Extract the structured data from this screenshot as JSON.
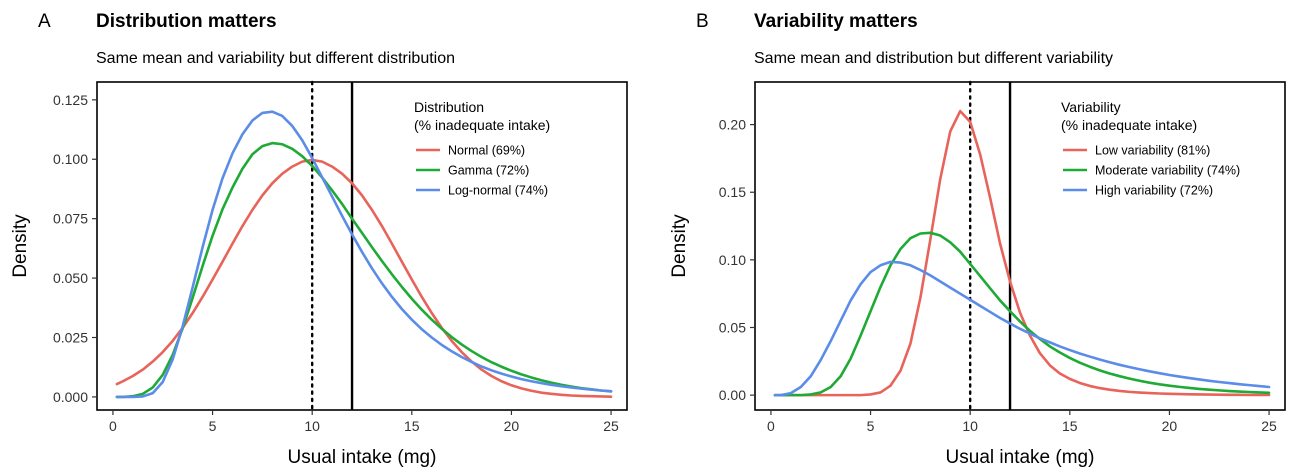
{
  "chart_data": [
    {
      "type": "line",
      "panel_label": "A",
      "title": "Distribution matters",
      "subtitle": "Same mean and variability but different distribution",
      "xlabel": "Usual intake (mg)",
      "ylabel": "Density",
      "xlim": [
        -0.8,
        25.8
      ],
      "ylim": [
        -0.0055,
        0.1325
      ],
      "xticks": [
        0,
        5,
        10,
        15,
        20,
        25
      ],
      "xtick_labels": [
        "0",
        "5",
        "10",
        "15",
        "20",
        "25"
      ],
      "yticks": [
        0,
        0.025,
        0.05,
        0.075,
        0.1,
        0.125
      ],
      "ytick_labels": [
        "0.000",
        "0.025",
        "0.050",
        "0.075",
        "0.100",
        "0.125"
      ],
      "grid": false,
      "legend": {
        "title_lines": [
          "Distribution",
          "(% inadequate intake)"
        ],
        "placement": "top-right inside plot"
      },
      "reference_lines": [
        {
          "x": 10,
          "style": "dotted",
          "color": "#000000"
        },
        {
          "x": 12,
          "style": "solid",
          "color": "#000000"
        }
      ],
      "series": [
        {
          "name": "Normal (69%)",
          "color": "#E8635A",
          "x": [
            0.2,
            0.5,
            1,
            1.5,
            2,
            2.5,
            3,
            3.5,
            4,
            4.5,
            5,
            5.5,
            6,
            6.5,
            7,
            7.5,
            8,
            8.5,
            9,
            9.5,
            10,
            10.5,
            11,
            11.5,
            12,
            12.5,
            13,
            13.5,
            14,
            14.5,
            15,
            15.5,
            16,
            16.5,
            17,
            17.5,
            18,
            18.5,
            19,
            19.5,
            20,
            20.5,
            21,
            21.5,
            22,
            22.5,
            23,
            23.5,
            24,
            24.5,
            25
          ],
          "y": [
            0.0054,
            0.0066,
            0.0088,
            0.0115,
            0.0149,
            0.0189,
            0.0236,
            0.0291,
            0.0353,
            0.0421,
            0.0494,
            0.0569,
            0.0645,
            0.0719,
            0.0787,
            0.0848,
            0.0899,
            0.0939,
            0.0969,
            0.099,
            0.0997,
            0.099,
            0.0969,
            0.0939,
            0.0899,
            0.0848,
            0.0787,
            0.0719,
            0.0645,
            0.0569,
            0.0494,
            0.0421,
            0.0353,
            0.0291,
            0.0236,
            0.0189,
            0.0149,
            0.0115,
            0.0088,
            0.0066,
            0.0049,
            0.0036,
            0.0026,
            0.0018,
            0.0013,
            0.0009,
            0.0006,
            0.0004,
            0.0003,
            0.0002,
            0.0001
          ]
        },
        {
          "name": "Gamma (72%)",
          "color": "#1FAA36",
          "x": [
            0.2,
            0.5,
            1,
            1.5,
            2,
            2.5,
            3,
            3.5,
            4,
            4.5,
            5,
            5.5,
            6,
            6.5,
            7,
            7.5,
            8,
            8.5,
            9,
            9.5,
            10,
            10.5,
            11,
            11.5,
            12,
            12.5,
            13,
            13.5,
            14,
            14.5,
            15,
            15.5,
            16,
            16.5,
            17,
            17.5,
            18,
            18.5,
            19,
            19.5,
            20,
            20.5,
            21,
            21.5,
            22,
            22.5,
            23,
            23.5,
            24,
            24.5,
            25
          ],
          "y": [
            0.0,
            0.0,
            0.0003,
            0.0013,
            0.004,
            0.0093,
            0.0177,
            0.0289,
            0.0417,
            0.0551,
            0.0678,
            0.079,
            0.0881,
            0.096,
            0.1021,
            0.1055,
            0.1068,
            0.1063,
            0.1044,
            0.1013,
            0.0972,
            0.0923,
            0.0869,
            0.0812,
            0.075,
            0.069,
            0.063,
            0.0572,
            0.0516,
            0.0463,
            0.0413,
            0.0367,
            0.0325,
            0.0287,
            0.0252,
            0.0221,
            0.0193,
            0.0168,
            0.0146,
            0.0127,
            0.011,
            0.0095,
            0.0082,
            0.007,
            0.006,
            0.0051,
            0.0044,
            0.0037,
            0.0032,
            0.0027,
            0.0023
          ]
        },
        {
          "name": "Log-normal (74%)",
          "color": "#5B8CE8",
          "x": [
            0.2,
            0.5,
            1,
            1.5,
            2,
            2.5,
            3,
            3.5,
            4,
            4.5,
            5,
            5.5,
            6,
            6.5,
            7,
            7.5,
            8,
            8.5,
            9,
            9.5,
            10,
            10.5,
            11,
            11.5,
            12,
            12.5,
            13,
            13.5,
            14,
            14.5,
            15,
            15.5,
            16,
            16.5,
            17,
            17.5,
            18,
            18.5,
            19,
            19.5,
            20,
            20.5,
            21,
            21.5,
            22,
            22.5,
            23,
            23.5,
            24,
            24.5,
            25
          ],
          "y": [
            0.0,
            0.0,
            0.0,
            0.0002,
            0.0016,
            0.0063,
            0.0158,
            0.0297,
            0.0461,
            0.063,
            0.0787,
            0.092,
            0.1025,
            0.1105,
            0.1163,
            0.1195,
            0.12,
            0.1182,
            0.114,
            0.108,
            0.1005,
            0.0924,
            0.0843,
            0.0762,
            0.0684,
            0.061,
            0.0541,
            0.0478,
            0.0421,
            0.037,
            0.0325,
            0.0285,
            0.025,
            0.0219,
            0.0192,
            0.0168,
            0.0147,
            0.0128,
            0.0112,
            0.0098,
            0.0086,
            0.0075,
            0.0066,
            0.0058,
            0.0051,
            0.0045,
            0.004,
            0.0035,
            0.0031,
            0.0027,
            0.0024
          ]
        }
      ]
    },
    {
      "type": "line",
      "panel_label": "B",
      "title": "Variability matters",
      "subtitle": "Same mean and distribution but different variability",
      "xlabel": "Usual intake (mg)",
      "ylabel": "Density",
      "xlim": [
        -0.8,
        25.8
      ],
      "ylim": [
        -0.011,
        0.2315
      ],
      "xticks": [
        0,
        5,
        10,
        15,
        20,
        25
      ],
      "xtick_labels": [
        "0",
        "5",
        "10",
        "15",
        "20",
        "25"
      ],
      "yticks": [
        0,
        0.05,
        0.1,
        0.15,
        0.2
      ],
      "ytick_labels": [
        "0.00",
        "0.05",
        "0.10",
        "0.15",
        "0.20"
      ],
      "grid": false,
      "legend": {
        "title_lines": [
          "Variability",
          "(% inadequate intake)"
        ],
        "placement": "top-right inside plot"
      },
      "reference_lines": [
        {
          "x": 10,
          "style": "dotted",
          "color": "#000000"
        },
        {
          "x": 12,
          "style": "solid",
          "color": "#000000"
        }
      ],
      "series": [
        {
          "name": "Low variability (81%)",
          "color": "#E8635A",
          "x": [
            0.2,
            0.5,
            1,
            1.5,
            2,
            2.5,
            3,
            3.5,
            4,
            4.5,
            5,
            5.5,
            6,
            6.5,
            7,
            7.5,
            8,
            8.5,
            9,
            9.5,
            10,
            10.5,
            11,
            11.5,
            12,
            12.5,
            13,
            13.5,
            14,
            14.5,
            15,
            15.5,
            16,
            16.5,
            17,
            17.5,
            18,
            18.5,
            19,
            19.5,
            20,
            20.5,
            21,
            21.5,
            22,
            22.5,
            23,
            23.5,
            24,
            24.5,
            25
          ],
          "y": [
            0.0,
            0.0,
            0.0,
            0.0,
            0.0,
            0.0,
            0.0,
            0.0,
            0.0,
            0.0,
            0.0005,
            0.002,
            0.007,
            0.018,
            0.038,
            0.072,
            0.115,
            0.16,
            0.195,
            0.21,
            0.202,
            0.178,
            0.146,
            0.112,
            0.084,
            0.061,
            0.044,
            0.031,
            0.022,
            0.016,
            0.012,
            0.009,
            0.0068,
            0.0052,
            0.004,
            0.0031,
            0.0024,
            0.0019,
            0.0015,
            0.0012,
            0.001,
            0.0008,
            0.0006,
            0.0005,
            0.0004,
            0.0003,
            0.0002,
            0.0002,
            0.0001,
            0.0001,
            0.0001
          ]
        },
        {
          "name": "Moderate variability (74%)",
          "color": "#1FAA36",
          "x": [
            0.2,
            0.5,
            1,
            1.5,
            2,
            2.5,
            3,
            3.5,
            4,
            4.5,
            5,
            5.5,
            6,
            6.5,
            7,
            7.5,
            8,
            8.5,
            9,
            9.5,
            10,
            10.5,
            11,
            11.5,
            12,
            12.5,
            13,
            13.5,
            14,
            14.5,
            15,
            15.5,
            16,
            16.5,
            17,
            17.5,
            18,
            18.5,
            19,
            19.5,
            20,
            20.5,
            21,
            21.5,
            22,
            22.5,
            23,
            23.5,
            24,
            24.5,
            25
          ],
          "y": [
            0.0,
            0.0,
            0.0,
            0.0,
            0.0005,
            0.002,
            0.006,
            0.014,
            0.027,
            0.044,
            0.062,
            0.08,
            0.096,
            0.108,
            0.116,
            0.1195,
            0.12,
            0.118,
            0.113,
            0.106,
            0.097,
            0.088,
            0.079,
            0.07,
            0.062,
            0.0545,
            0.0475,
            0.0415,
            0.036,
            0.0315,
            0.0275,
            0.024,
            0.021,
            0.0183,
            0.016,
            0.014,
            0.0122,
            0.0106,
            0.0092,
            0.008,
            0.007,
            0.0061,
            0.0053,
            0.0046,
            0.004,
            0.0035,
            0.003,
            0.0026,
            0.0023,
            0.002,
            0.0017
          ]
        },
        {
          "name": "High variability (72%)",
          "color": "#5B8CE8",
          "x": [
            0.2,
            0.5,
            1,
            1.5,
            2,
            2.5,
            3,
            3.5,
            4,
            4.5,
            5,
            5.5,
            6,
            6.5,
            7,
            7.5,
            8,
            8.5,
            9,
            9.5,
            10,
            10.5,
            11,
            11.5,
            12,
            12.5,
            13,
            13.5,
            14,
            14.5,
            15,
            15.5,
            16,
            16.5,
            17,
            17.5,
            18,
            18.5,
            19,
            19.5,
            20,
            20.5,
            21,
            21.5,
            22,
            22.5,
            23,
            23.5,
            24,
            24.5,
            25
          ],
          "y": [
            0.0,
            0.0,
            0.0015,
            0.006,
            0.014,
            0.026,
            0.04,
            0.055,
            0.07,
            0.082,
            0.091,
            0.096,
            0.0985,
            0.098,
            0.096,
            0.0925,
            0.0885,
            0.084,
            0.0795,
            0.075,
            0.0705,
            0.066,
            0.0615,
            0.057,
            0.053,
            0.049,
            0.0455,
            0.042,
            0.039,
            0.036,
            0.0333,
            0.0308,
            0.0285,
            0.0263,
            0.0243,
            0.0224,
            0.0207,
            0.0191,
            0.0176,
            0.0162,
            0.0149,
            0.0137,
            0.0126,
            0.0116,
            0.0106,
            0.0097,
            0.0089,
            0.0081,
            0.0074,
            0.0067,
            0.006
          ]
        }
      ]
    }
  ]
}
